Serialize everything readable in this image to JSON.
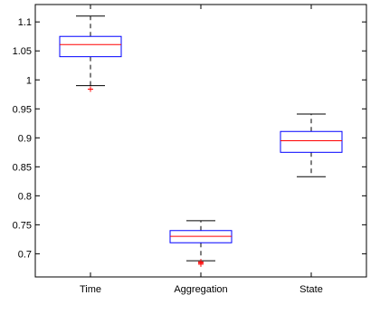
{
  "chart_data": {
    "type": "box",
    "title": "",
    "xlabel": "",
    "ylabel": "",
    "ylim": [
      0.66,
      1.13
    ],
    "yticks": [
      0.7,
      0.75,
      0.8,
      0.85,
      0.9,
      0.95,
      1,
      1.05,
      1.1
    ],
    "ytick_labels": [
      "0.7",
      "0.75",
      "0.8",
      "0.85",
      "0.9",
      "0.95",
      "1",
      "1.05",
      "1.1"
    ],
    "categories": [
      "Time",
      "Aggregation",
      "State"
    ],
    "boxes": [
      {
        "category": "Time",
        "whisker_low": 0.99,
        "q1": 1.04,
        "median": 1.061,
        "q3": 1.075,
        "whisker_high": 1.11,
        "outliers": [
          0.984
        ]
      },
      {
        "category": "Aggregation",
        "whisker_low": 0.688,
        "q1": 0.719,
        "median": 0.73,
        "q3": 0.74,
        "whisker_high": 0.757,
        "outliers": [
          0.682,
          0.684,
          0.686
        ]
      },
      {
        "category": "State",
        "whisker_low": 0.833,
        "q1": 0.875,
        "median": 0.895,
        "q3": 0.911,
        "whisker_high": 0.941,
        "outliers": []
      }
    ],
    "grid": false,
    "colors": {
      "box": "#0000ff",
      "median": "#ff0000",
      "whisker": "#000000",
      "outlier": "#ff0000",
      "axes": "#000000"
    }
  }
}
